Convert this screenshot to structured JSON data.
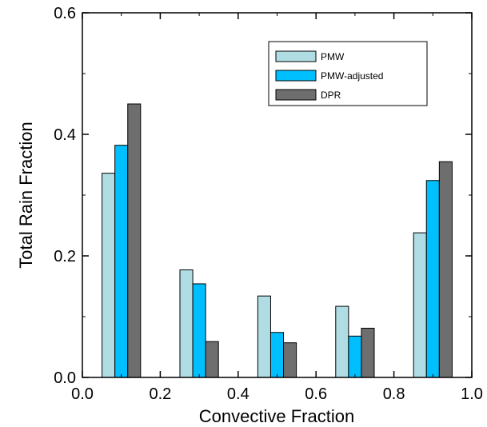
{
  "chart_data": {
    "type": "bar",
    "title": "",
    "xlabel": "Convective Fraction",
    "ylabel": "Total Rain Fraction",
    "xlim": [
      0.0,
      1.0
    ],
    "ylim": [
      0.0,
      0.6
    ],
    "xticks": [
      "0.0",
      "0.2",
      "0.4",
      "0.6",
      "0.8",
      "1.0"
    ],
    "yticks": [
      "0.0",
      "0.2",
      "0.4",
      "0.6"
    ],
    "x": [
      0.1,
      0.3,
      0.5,
      0.7,
      0.9
    ],
    "bar_width": 0.033,
    "series": [
      {
        "name": "PMW",
        "color": "#b0dde4",
        "values": [
          0.336,
          0.177,
          0.134,
          0.117,
          0.238
        ]
      },
      {
        "name": "PMW-adjusted",
        "color": "#00bfff",
        "values": [
          0.382,
          0.154,
          0.074,
          0.068,
          0.324
        ]
      },
      {
        "name": "DPR",
        "color": "#6e6e6e",
        "values": [
          0.45,
          0.059,
          0.057,
          0.081,
          0.355
        ]
      }
    ],
    "legend_position": "top-right",
    "grid": false
  }
}
